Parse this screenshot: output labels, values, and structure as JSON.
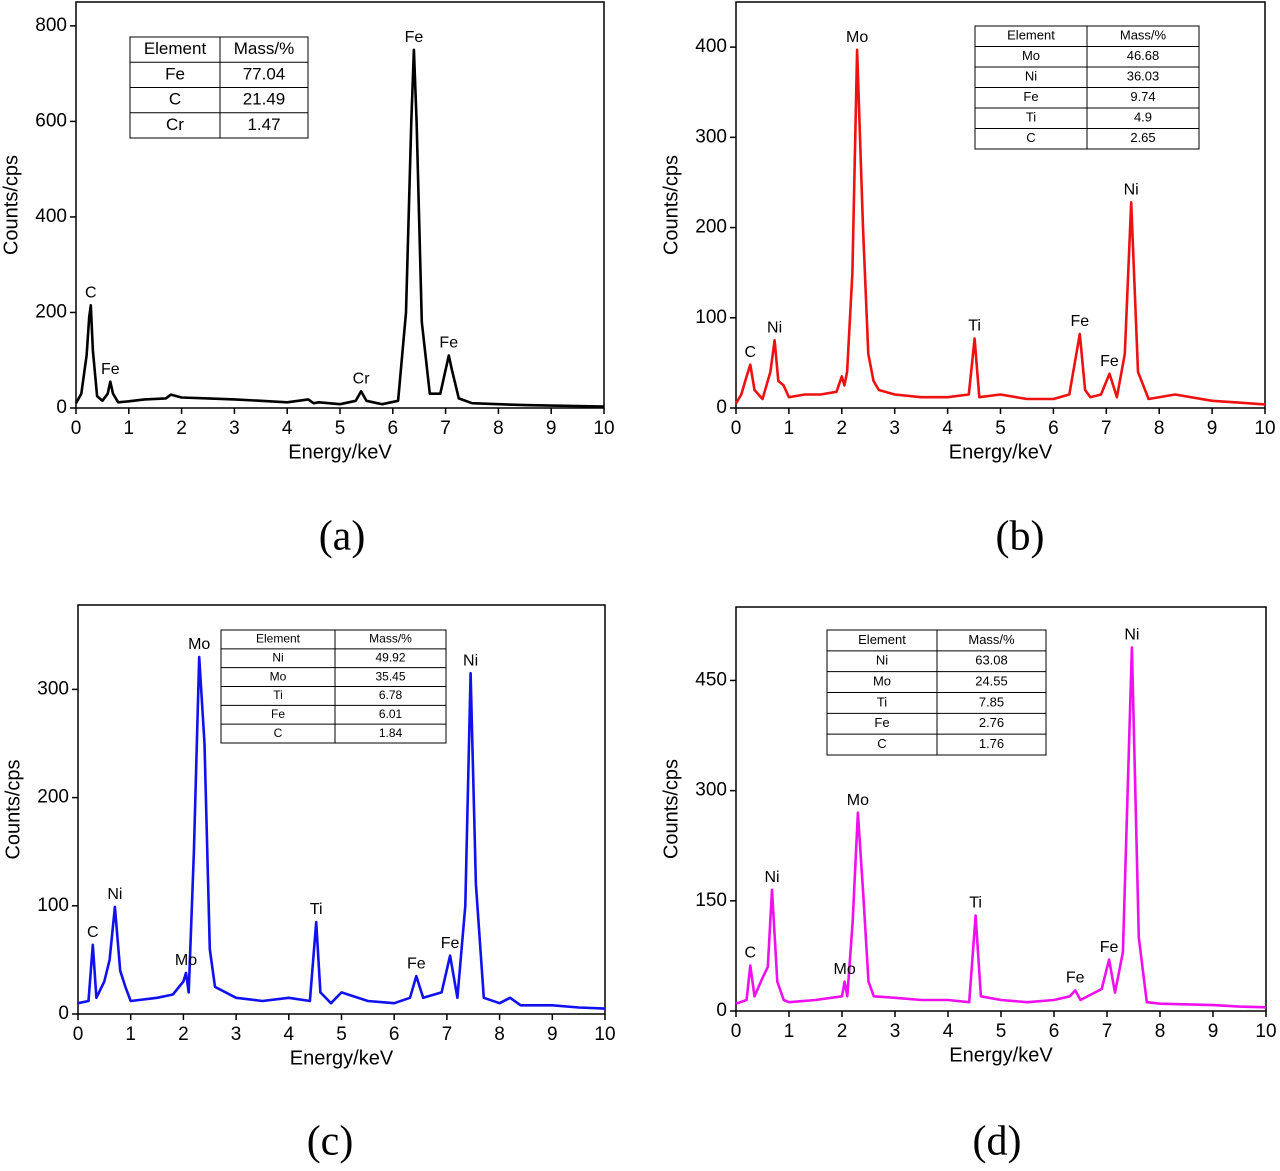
{
  "chart_data": [
    {
      "type": "line",
      "caption": "(a)",
      "xlabel": "Energy/keV",
      "ylabel": "Counts/cps",
      "xlim": [
        0,
        10
      ],
      "ylim": [
        0,
        850
      ],
      "xticks": [
        0,
        1,
        2,
        3,
        4,
        5,
        6,
        7,
        8,
        9,
        10
      ],
      "yticks": [
        0,
        200,
        400,
        600,
        800
      ],
      "series": [
        {
          "color": "#000000",
          "x": [
            0,
            0.1,
            0.2,
            0.25,
            0.28,
            0.32,
            0.4,
            0.5,
            0.6,
            0.65,
            0.7,
            0.8,
            1.0,
            1.3,
            1.7,
            1.8,
            2.0,
            2.5,
            3.0,
            3.5,
            4.0,
            4.4,
            4.5,
            4.6,
            5.0,
            5.3,
            5.4,
            5.5,
            5.8,
            6.1,
            6.25,
            6.35,
            6.4,
            6.45,
            6.55,
            6.7,
            6.9,
            7.0,
            7.06,
            7.12,
            7.25,
            7.5,
            8,
            8.5,
            9,
            9.5,
            10
          ],
          "values": [
            10,
            30,
            110,
            190,
            215,
            120,
            25,
            15,
            30,
            55,
            30,
            12,
            14,
            18,
            20,
            28,
            22,
            20,
            18,
            15,
            12,
            18,
            10,
            12,
            8,
            15,
            35,
            15,
            8,
            15,
            200,
            600,
            750,
            600,
            180,
            30,
            30,
            80,
            110,
            80,
            20,
            10,
            8,
            6,
            5,
            4,
            3
          ]
        }
      ],
      "annotations": [
        {
          "text": "C",
          "x": 0.28
        },
        {
          "text": "Fe",
          "x": 0.65
        },
        {
          "text": "Cr",
          "x": 5.4
        },
        {
          "text": "Fe",
          "x": 6.4
        },
        {
          "text": "Fe",
          "x": 7.06
        }
      ],
      "table": {
        "header": [
          "Element",
          "Mass/%"
        ],
        "rows": [
          [
            "Fe",
            77.04
          ],
          [
            "C",
            21.49
          ],
          [
            "Cr",
            1.47
          ]
        ]
      }
    },
    {
      "type": "line",
      "caption": "(b)",
      "xlabel": "Energy/keV",
      "ylabel": "Counts/cps",
      "xlim": [
        0,
        10
      ],
      "ylim": [
        0,
        450
      ],
      "xticks": [
        0,
        1,
        2,
        3,
        4,
        5,
        6,
        7,
        8,
        9,
        10
      ],
      "yticks": [
        0,
        100,
        200,
        300,
        400
      ],
      "series": [
        {
          "color": "#ee1111",
          "x": [
            0,
            0.1,
            0.2,
            0.27,
            0.35,
            0.5,
            0.65,
            0.73,
            0.8,
            0.9,
            1.0,
            1.3,
            1.6,
            1.9,
            2.0,
            2.05,
            2.1,
            2.2,
            2.29,
            2.4,
            2.5,
            2.6,
            2.7,
            3.0,
            3.5,
            4.0,
            4.4,
            4.51,
            4.6,
            5.0,
            5.5,
            6.0,
            6.3,
            6.5,
            6.6,
            6.7,
            6.9,
            7.06,
            7.2,
            7.35,
            7.47,
            7.6,
            7.8,
            8.3,
            9,
            9.5,
            10
          ],
          "values": [
            5,
            15,
            35,
            48,
            20,
            10,
            40,
            75,
            30,
            25,
            12,
            15,
            15,
            18,
            35,
            25,
            40,
            150,
            397,
            200,
            60,
            30,
            20,
            15,
            12,
            12,
            15,
            77,
            12,
            15,
            10,
            10,
            15,
            82,
            20,
            12,
            15,
            38,
            12,
            60,
            228,
            40,
            10,
            15,
            8,
            6,
            4
          ]
        }
      ],
      "annotations": [
        {
          "text": "C",
          "x": 0.27
        },
        {
          "text": "Ni",
          "x": 0.73
        },
        {
          "text": "Mo",
          "x": 2.29
        },
        {
          "text": "Ti",
          "x": 4.51
        },
        {
          "text": "Fe",
          "x": 6.5
        },
        {
          "text": "Fe",
          "x": 7.06
        },
        {
          "text": "Ni",
          "x": 7.47
        }
      ],
      "table": {
        "header": [
          "Element",
          "Mass/%"
        ],
        "rows": [
          [
            "Mo",
            46.68
          ],
          [
            "Ni",
            36.03
          ],
          [
            "Fe",
            9.74
          ],
          [
            "Ti",
            4.9
          ],
          [
            "C",
            2.65
          ]
        ]
      }
    },
    {
      "type": "line",
      "caption": "(c)",
      "xlabel": "Energy/keV",
      "ylabel": "Counts/cps",
      "xlim": [
        0,
        10
      ],
      "ylim": [
        0,
        378
      ],
      "xticks": [
        0,
        1,
        2,
        3,
        4,
        5,
        6,
        7,
        8,
        9,
        10
      ],
      "yticks": [
        0,
        100,
        200,
        300
      ],
      "series": [
        {
          "color": "#1111ee",
          "x": [
            0,
            0.2,
            0.28,
            0.35,
            0.5,
            0.6,
            0.7,
            0.8,
            0.9,
            1.0,
            1.5,
            1.8,
            2.0,
            2.05,
            2.1,
            2.2,
            2.3,
            2.4,
            2.5,
            2.6,
            3.0,
            3.5,
            4.0,
            4.4,
            4.52,
            4.6,
            4.8,
            5.0,
            5.5,
            6.0,
            6.3,
            6.42,
            6.55,
            6.9,
            7.06,
            7.2,
            7.35,
            7.45,
            7.55,
            7.7,
            8.0,
            8.2,
            8.4,
            9,
            9.5,
            10
          ],
          "values": [
            10,
            12,
            64,
            15,
            30,
            50,
            99,
            40,
            25,
            12,
            15,
            18,
            30,
            38,
            20,
            150,
            330,
            250,
            60,
            25,
            15,
            12,
            15,
            12,
            85,
            20,
            10,
            20,
            12,
            10,
            15,
            35,
            15,
            20,
            54,
            15,
            100,
            315,
            120,
            15,
            10,
            15,
            8,
            8,
            6,
            5
          ]
        }
      ],
      "annotations": [
        {
          "text": "C",
          "x": 0.28
        },
        {
          "text": "Ni",
          "x": 0.7
        },
        {
          "text": "Mo",
          "x": 2.05
        },
        {
          "text": "Mo",
          "x": 2.3
        },
        {
          "text": "Ti",
          "x": 4.52
        },
        {
          "text": "Fe",
          "x": 6.42
        },
        {
          "text": "Fe",
          "x": 7.06
        },
        {
          "text": "Ni",
          "x": 7.45
        }
      ],
      "table": {
        "header": [
          "Element",
          "Mass/%"
        ],
        "rows": [
          [
            "Ni",
            49.92
          ],
          [
            "Mo",
            35.45
          ],
          [
            "Ti",
            6.78
          ],
          [
            "Fe",
            6.01
          ],
          [
            "C",
            1.84
          ]
        ]
      }
    },
    {
      "type": "line",
      "caption": "(d)",
      "xlabel": "Energy/keV",
      "ylabel": "Counts/cps",
      "xlim": [
        0,
        10
      ],
      "ylim": [
        0,
        550
      ],
      "xticks": [
        0,
        1,
        2,
        3,
        4,
        5,
        6,
        7,
        8,
        9,
        10
      ],
      "yticks": [
        0,
        150,
        300,
        450
      ],
      "series": [
        {
          "color": "#ee11ee",
          "x": [
            0,
            0.2,
            0.27,
            0.35,
            0.5,
            0.6,
            0.68,
            0.78,
            0.9,
            1.0,
            1.5,
            2.0,
            2.05,
            2.1,
            2.2,
            2.3,
            2.4,
            2.5,
            2.6,
            3.0,
            3.5,
            4.0,
            4.4,
            4.52,
            4.62,
            5.0,
            5.5,
            6.0,
            6.3,
            6.4,
            6.5,
            6.9,
            7.04,
            7.15,
            7.3,
            7.47,
            7.6,
            7.75,
            8.0,
            9,
            9.5,
            10
          ],
          "values": [
            10,
            15,
            62,
            20,
            45,
            60,
            165,
            40,
            15,
            12,
            15,
            20,
            40,
            20,
            120,
            270,
            160,
            40,
            20,
            18,
            15,
            15,
            12,
            130,
            20,
            15,
            12,
            15,
            20,
            28,
            15,
            30,
            70,
            25,
            80,
            495,
            100,
            12,
            10,
            8,
            6,
            5
          ]
        }
      ],
      "annotations": [
        {
          "text": "C",
          "x": 0.27
        },
        {
          "text": "Ni",
          "x": 0.68
        },
        {
          "text": "Mo",
          "x": 2.05
        },
        {
          "text": "Mo",
          "x": 2.3
        },
        {
          "text": "Ti",
          "x": 4.52
        },
        {
          "text": "Fe",
          "x": 6.4
        },
        {
          "text": "Fe",
          "x": 7.04
        },
        {
          "text": "Ni",
          "x": 7.47
        }
      ],
      "table": {
        "header": [
          "Element",
          "Mass/%"
        ],
        "rows": [
          [
            "Ni",
            63.08
          ],
          [
            "Mo",
            24.55
          ],
          [
            "Ti",
            7.85
          ],
          [
            "Fe",
            2.76
          ],
          [
            "C",
            1.76
          ]
        ]
      }
    }
  ]
}
